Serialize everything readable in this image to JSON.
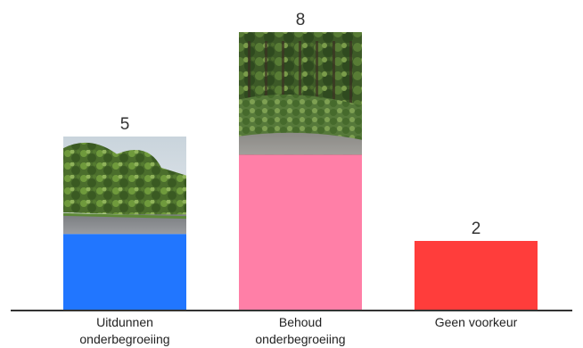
{
  "chart_data": {
    "type": "bar",
    "categories": [
      [
        "Uitdunnen",
        "onderbegroeiing"
      ],
      [
        "Behoud",
        "onderbegroeiing"
      ],
      [
        "Geen voorkeur"
      ]
    ],
    "values": [
      5,
      8,
      2
    ],
    "value_labels": [
      "5",
      "8",
      "2"
    ],
    "ylim": [
      0,
      8
    ],
    "grid": false,
    "legend": "none"
  },
  "colors": {
    "bar_colors": [
      "#2176ff",
      "#ff7fa7",
      "#ff3d3b"
    ],
    "axis": "#333333"
  },
  "bar_images": [
    "forest-roadside-photo",
    "forest-undergrowth-photo",
    "none"
  ]
}
